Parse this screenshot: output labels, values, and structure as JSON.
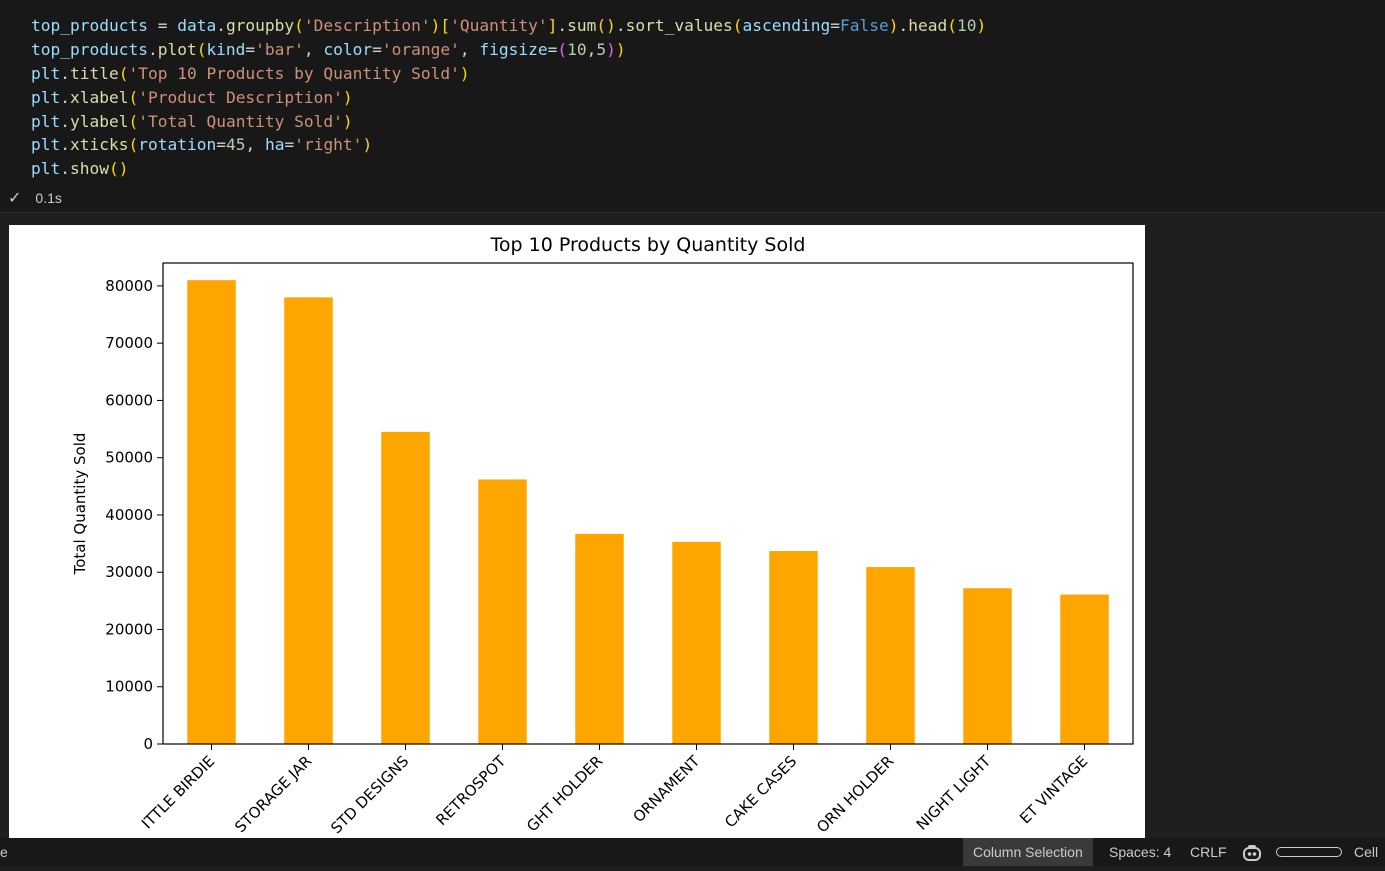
{
  "code_cell": {
    "lines": [
      [
        [
          "var",
          "top_products"
        ],
        [
          "op",
          " = "
        ],
        [
          "var",
          "data"
        ],
        [
          "op",
          "."
        ],
        [
          "fn",
          "groupby"
        ],
        [
          "p1",
          "("
        ],
        [
          "str",
          "'Description'"
        ],
        [
          "p1",
          ")"
        ],
        [
          "p1",
          "["
        ],
        [
          "str",
          "'Quantity'"
        ],
        [
          "p1",
          "]"
        ],
        [
          "op",
          "."
        ],
        [
          "fn",
          "sum"
        ],
        [
          "p1",
          "()"
        ],
        [
          "op",
          "."
        ],
        [
          "fn",
          "sort_values"
        ],
        [
          "p1",
          "("
        ],
        [
          "var",
          "ascending"
        ],
        [
          "op",
          "="
        ],
        [
          "kw",
          "False"
        ],
        [
          "p1",
          ")"
        ],
        [
          "op",
          "."
        ],
        [
          "fn",
          "head"
        ],
        [
          "p1",
          "("
        ],
        [
          "num",
          "10"
        ],
        [
          "p1",
          ")"
        ]
      ],
      [
        [
          "var",
          "top_products"
        ],
        [
          "op",
          "."
        ],
        [
          "fn",
          "plot"
        ],
        [
          "p1",
          "("
        ],
        [
          "var",
          "kind"
        ],
        [
          "op",
          "="
        ],
        [
          "str",
          "'bar'"
        ],
        [
          "op",
          ", "
        ],
        [
          "var",
          "color"
        ],
        [
          "op",
          "="
        ],
        [
          "str",
          "'orange'"
        ],
        [
          "op",
          ", "
        ],
        [
          "var",
          "figsize"
        ],
        [
          "op",
          "="
        ],
        [
          "p2",
          "("
        ],
        [
          "num",
          "10"
        ],
        [
          "op",
          ","
        ],
        [
          "num",
          "5"
        ],
        [
          "p2",
          ")"
        ],
        [
          "p1",
          ")"
        ]
      ],
      [
        [
          "var",
          "plt"
        ],
        [
          "op",
          "."
        ],
        [
          "fn",
          "title"
        ],
        [
          "p1",
          "("
        ],
        [
          "str",
          "'Top 10 Products by Quantity Sold'"
        ],
        [
          "p1",
          ")"
        ]
      ],
      [
        [
          "var",
          "plt"
        ],
        [
          "op",
          "."
        ],
        [
          "fn",
          "xlabel"
        ],
        [
          "p1",
          "("
        ],
        [
          "str",
          "'Product Description'"
        ],
        [
          "p1",
          ")"
        ]
      ],
      [
        [
          "var",
          "plt"
        ],
        [
          "op",
          "."
        ],
        [
          "fn",
          "ylabel"
        ],
        [
          "p1",
          "("
        ],
        [
          "str",
          "'Total Quantity Sold'"
        ],
        [
          "p1",
          ")"
        ]
      ],
      [
        [
          "var",
          "plt"
        ],
        [
          "op",
          "."
        ],
        [
          "fn",
          "xticks"
        ],
        [
          "p1",
          "("
        ],
        [
          "var",
          "rotation"
        ],
        [
          "op",
          "="
        ],
        [
          "num",
          "45"
        ],
        [
          "op",
          ", "
        ],
        [
          "var",
          "ha"
        ],
        [
          "op",
          "="
        ],
        [
          "str",
          "'right'"
        ],
        [
          "p1",
          ")"
        ]
      ],
      [
        [
          "var",
          "plt"
        ],
        [
          "op",
          "."
        ],
        [
          "fn",
          "show"
        ],
        [
          "p1",
          "()"
        ]
      ]
    ],
    "exec_check_icon": "check-icon",
    "exec_time": "0.1s"
  },
  "chart_data": {
    "type": "bar",
    "title": "Top 10 Products by Quantity Sold",
    "ylabel": "Total Quantity Sold",
    "xlabel": "",
    "color": "#ffa500",
    "ylim": [
      0,
      84000
    ],
    "yticks": [
      "0",
      "10000",
      "20000",
      "30000",
      "40000",
      "50000",
      "60000",
      "70000",
      "80000"
    ],
    "categories": [
      "ITTLE BIRDIE",
      "STORAGE JAR",
      "STD DESIGNS",
      "RETROSPOT",
      "GHT HOLDER",
      "ORNAMENT",
      "CAKE CASES",
      "ORN HOLDER",
      "NIGHT LIGHT",
      "ET VINTAGE"
    ],
    "values": [
      81000,
      78000,
      54500,
      46200,
      36700,
      35300,
      33700,
      30900,
      27200,
      26100
    ]
  },
  "statusbar": {
    "left_fragment": "e",
    "column_selection": "Column Selection",
    "spaces": "Spaces: 4",
    "eol": "CRLF",
    "copilot_icon": "copilot-icon",
    "cell": "Cell"
  }
}
